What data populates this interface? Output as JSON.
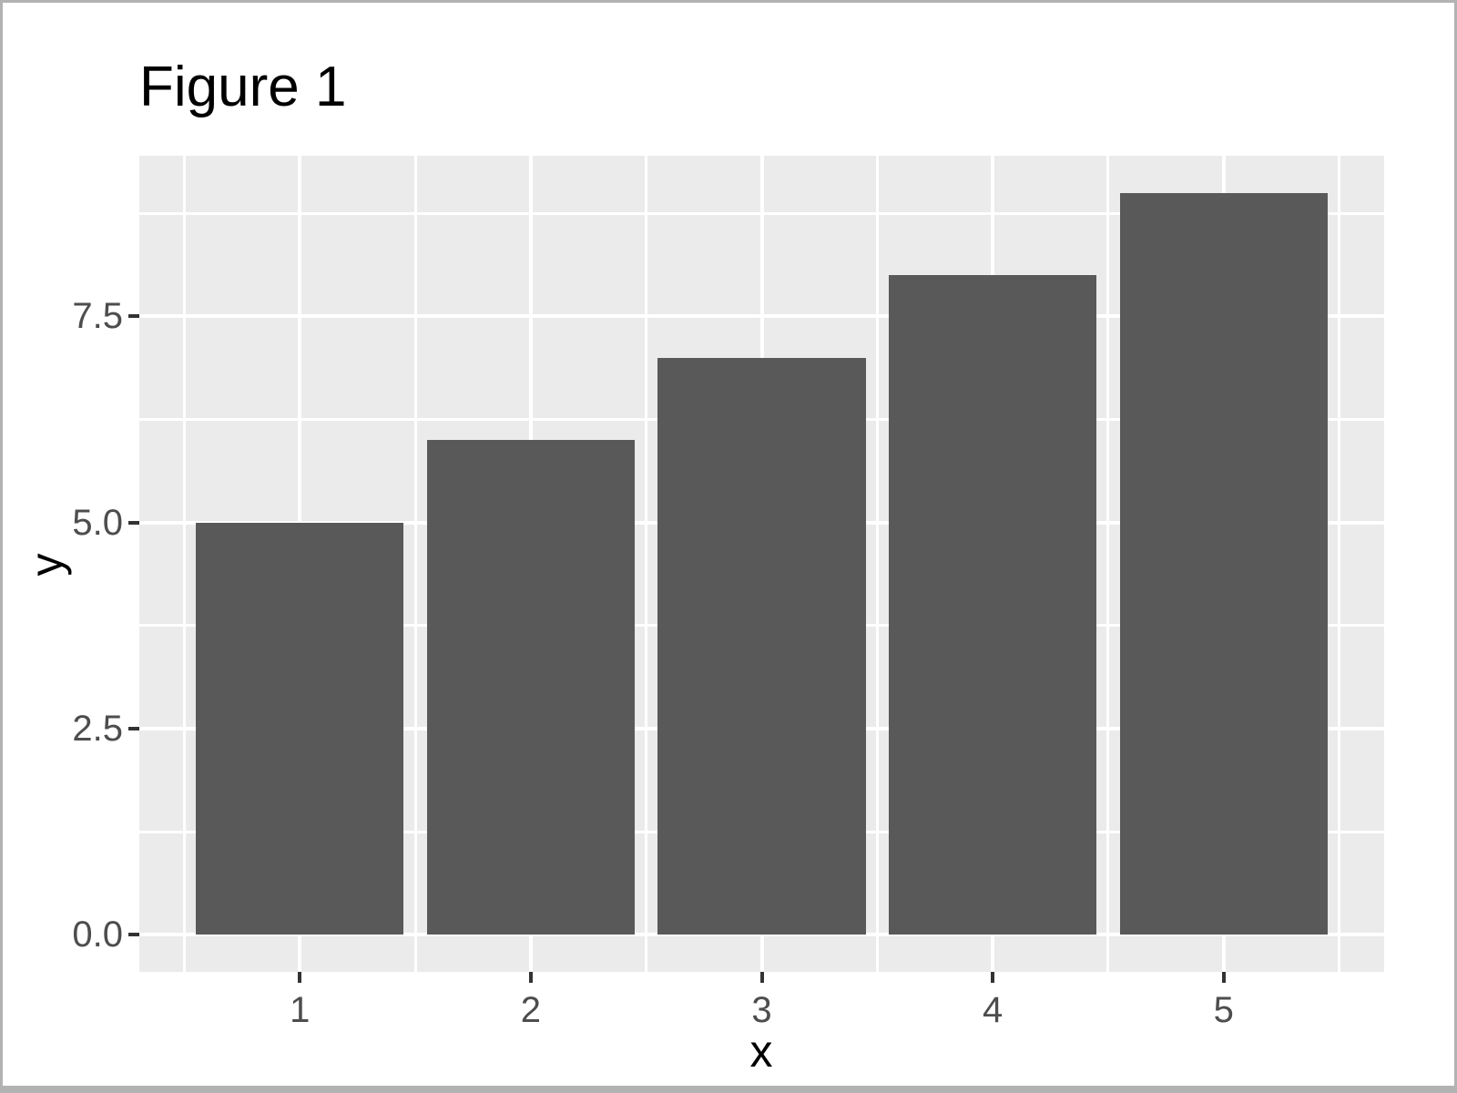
{
  "window": {
    "border_color": "#b2b2b2",
    "background": "#ffffff"
  },
  "chart_data": {
    "type": "bar",
    "title": "Figure 1",
    "xlabel": "x",
    "ylabel": "y",
    "categories": [
      1,
      2,
      3,
      4,
      5
    ],
    "values": [
      5,
      6,
      7,
      8,
      9
    ],
    "x_tick_labels": [
      "1",
      "2",
      "3",
      "4",
      "5"
    ],
    "y_tick_labels": [
      "0.0",
      "2.5",
      "5.0",
      "7.5"
    ],
    "y_tick_values": [
      0,
      2.5,
      5.0,
      7.5
    ],
    "xlim": [
      0.305,
      5.695
    ],
    "ylim": [
      -0.45,
      9.45
    ],
    "bar_width": 0.9,
    "grid": {
      "major_x": [
        1,
        2,
        3,
        4,
        5
      ],
      "minor_x": [
        0.5,
        1.5,
        2.5,
        3.5,
        4.5,
        5.5
      ],
      "major_y": [
        0,
        2.5,
        5.0,
        7.5
      ],
      "minor_y": [
        1.25,
        3.75,
        6.25,
        8.75
      ],
      "grid_on": true
    },
    "legend": "none",
    "colors": {
      "bar_fill": "#595959",
      "panel_background": "#ebebeb",
      "gridline_major": "#ffffff",
      "gridline_minor": "#ffffff",
      "tick_mark": "#333333",
      "tick_label": "#4d4d4d",
      "title": "#000000",
      "axis_title": "#000000"
    }
  }
}
